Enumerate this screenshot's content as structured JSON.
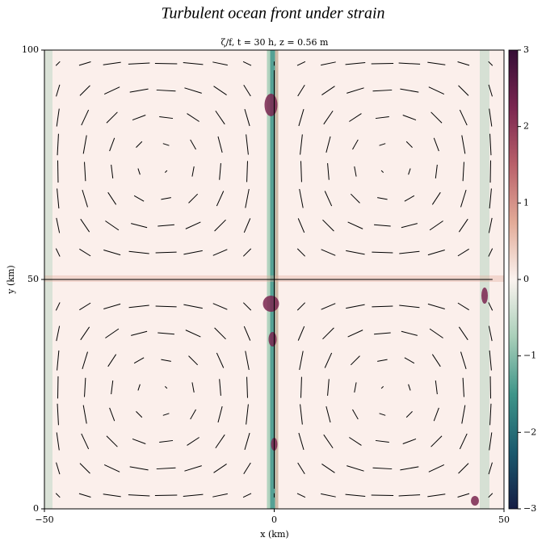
{
  "chart_data": {
    "type": "heatmap",
    "title": "Turbulent ocean front under strain",
    "subtitle": "ζ/f, t = 30 h, z = 0.56 m",
    "x_label": "x (km)",
    "y_label": "y (km)",
    "xlim": [
      -50,
      50
    ],
    "xticks": [
      {
        "value": -50,
        "label": "−50"
      },
      0,
      50
    ],
    "ylim": [
      0,
      100
    ],
    "yticks": [
      0,
      50,
      100
    ],
    "colorbar": {
      "lim": [
        -3,
        3
      ],
      "ticks": [
        {
          "value": -3,
          "label": "−3"
        },
        {
          "value": -2,
          "label": "−2"
        },
        {
          "value": -1,
          "label": "−1"
        },
        0,
        1,
        2,
        3
      ],
      "colors": [
        "#151d44",
        "#1b5a6e",
        "#3f9589",
        "#a9cfb9",
        "#fbf3ef",
        "#e2aa97",
        "#b9606a",
        "#7a2650",
        "#340d35"
      ]
    }
  }
}
